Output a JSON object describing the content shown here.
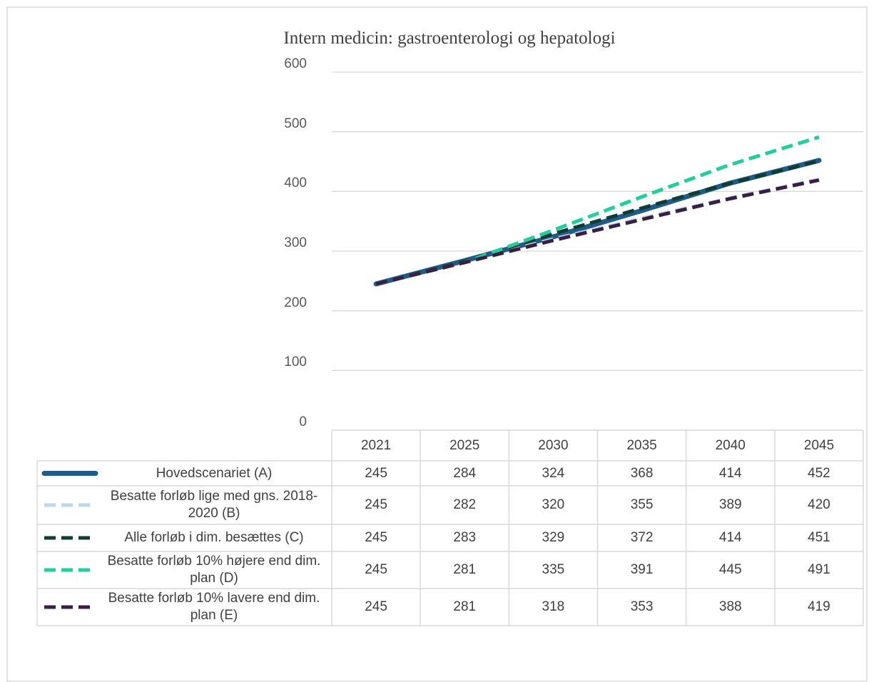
{
  "chart_data": {
    "type": "line",
    "title": "Intern medicin: gastroenterologi og hepatologi",
    "categories": [
      "2021",
      "2025",
      "2030",
      "2035",
      "2040",
      "2045"
    ],
    "ylim": [
      0,
      600
    ],
    "yticks": [
      0,
      100,
      200,
      300,
      400,
      500,
      600
    ],
    "grid": true,
    "series": [
      {
        "name": "Hovedscenariet (A)",
        "color": "#1f5c8a",
        "dash": false,
        "values": [
          245,
          284,
          324,
          368,
          414,
          452
        ]
      },
      {
        "name": "Besatte forløb lige med gns. 2018-2020 (B)",
        "color": "#bdd7ee",
        "dash": true,
        "values": [
          245,
          282,
          320,
          355,
          389,
          420
        ]
      },
      {
        "name": "Alle forløb i dim. besættes (C)",
        "color": "#0f3d33",
        "dash": true,
        "values": [
          245,
          283,
          329,
          372,
          414,
          451
        ]
      },
      {
        "name": "Besatte forløb 10% højere end dim. plan (D)",
        "color": "#1fcf9c",
        "dash": true,
        "values": [
          245,
          281,
          335,
          391,
          445,
          491
        ]
      },
      {
        "name": "Besatte forløb 10% lavere end dim. plan (E)",
        "color": "#3a1f45",
        "dash": true,
        "values": [
          245,
          281,
          318,
          353,
          388,
          419
        ]
      }
    ]
  }
}
